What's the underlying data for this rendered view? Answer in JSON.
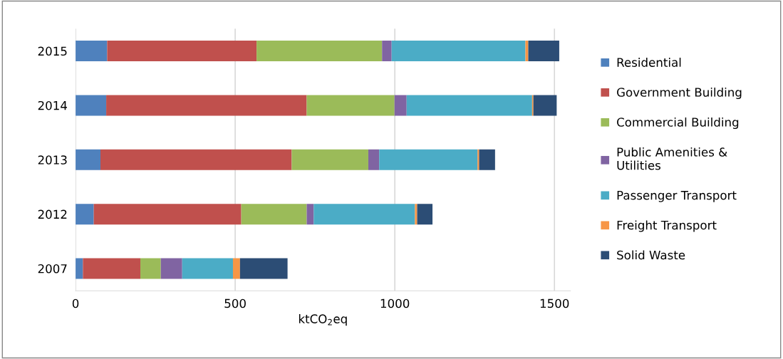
{
  "chart_data": {
    "type": "bar",
    "orientation": "horizontal",
    "stacked": true,
    "categories": [
      "2015",
      "2014",
      "2013",
      "2012",
      "2007"
    ],
    "series": [
      {
        "name": "Residential",
        "color": "#4f81bd",
        "values": [
          99,
          96,
          78,
          57,
          23
        ]
      },
      {
        "name": "Government Building",
        "color": "#c0504d",
        "values": [
          468,
          628,
          599,
          462,
          180
        ]
      },
      {
        "name": "Commercial Building",
        "color": "#9bbb59",
        "values": [
          393,
          275,
          240,
          205,
          64
        ]
      },
      {
        "name": "Public Amenities &\nUtilities",
        "color": "#8064a2",
        "values": [
          30,
          38,
          34,
          22,
          67
        ]
      },
      {
        "name": "Passenger Transport",
        "color": "#4bacc6",
        "values": [
          419,
          393,
          308,
          317,
          159
        ]
      },
      {
        "name": "Freight Transport",
        "color": "#f79646",
        "values": [
          9,
          4,
          5,
          7,
          22
        ]
      },
      {
        "name": "Solid Waste",
        "color": "#2c4d75",
        "values": [
          97,
          73,
          50,
          48,
          149
        ]
      }
    ],
    "xlabel": "ktCO$_{2}$eq",
    "xlim": [
      0,
      1550
    ],
    "xticks": [
      0,
      500,
      1000,
      1500
    ],
    "grid": "x",
    "legend": "right"
  }
}
